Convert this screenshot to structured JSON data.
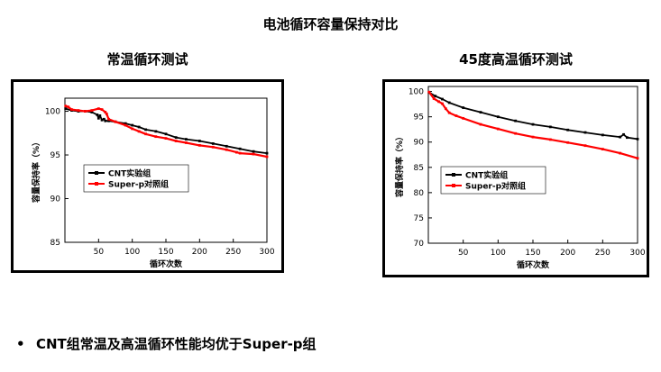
{
  "page": {
    "title": "电池循环容量保持对比",
    "bullet": "CNT组常温及高温循环性能均优于Super-p组"
  },
  "colors": {
    "cnt": "#000000",
    "superp": "#ff0000"
  },
  "chart_data": [
    {
      "type": "line",
      "title": "常温循环测试",
      "xlabel": "循环次数",
      "ylabel": "容量保持率（%）",
      "xlim": [
        0,
        300
      ],
      "ylim": [
        85,
        101.5
      ],
      "xticks": [
        50,
        100,
        150,
        200,
        250,
        300
      ],
      "yticks": [
        85,
        90,
        95,
        100
      ],
      "legend_position": "center-left",
      "grid": false,
      "series": [
        {
          "name": "CNT实验组",
          "color": "#000000",
          "x": [
            1,
            10,
            20,
            30,
            40,
            48,
            50,
            52,
            55,
            58,
            60,
            65,
            75,
            90,
            100,
            110,
            120,
            135,
            150,
            165,
            180,
            200,
            220,
            240,
            260,
            280,
            300
          ],
          "y": [
            100.3,
            100.1,
            100.0,
            100.0,
            99.9,
            99.6,
            99.2,
            99.5,
            99.0,
            99.1,
            98.9,
            98.9,
            98.8,
            98.6,
            98.4,
            98.2,
            97.9,
            97.7,
            97.4,
            97.0,
            96.8,
            96.6,
            96.3,
            96.0,
            95.7,
            95.4,
            95.2
          ]
        },
        {
          "name": "Super-p对照组",
          "color": "#ff0000",
          "x": [
            1,
            5,
            10,
            20,
            30,
            40,
            50,
            55,
            60,
            62,
            65,
            75,
            90,
            100,
            110,
            120,
            135,
            150,
            165,
            180,
            200,
            220,
            240,
            255,
            260,
            280,
            300
          ],
          "y": [
            100.6,
            100.5,
            100.2,
            100.1,
            100.0,
            100.1,
            100.3,
            100.2,
            99.9,
            99.7,
            99.1,
            98.8,
            98.4,
            98.0,
            97.7,
            97.4,
            97.1,
            96.9,
            96.6,
            96.4,
            96.1,
            95.9,
            95.6,
            95.3,
            95.2,
            95.1,
            94.8
          ]
        }
      ]
    },
    {
      "type": "line",
      "title": "45度高温循环测试",
      "xlabel": "循环次数",
      "ylabel": "容量保持率（%）",
      "xlim": [
        0,
        300
      ],
      "ylim": [
        70,
        101
      ],
      "xticks": [
        50,
        100,
        150,
        200,
        250,
        300
      ],
      "yticks": [
        70,
        75,
        80,
        85,
        90,
        95,
        100
      ],
      "legend_position": "center-left",
      "grid": false,
      "series": [
        {
          "name": "CNT实验组",
          "color": "#000000",
          "x": [
            1,
            10,
            20,
            30,
            50,
            75,
            100,
            125,
            150,
            175,
            200,
            225,
            250,
            275,
            280,
            285,
            300
          ],
          "y": [
            99.8,
            99.1,
            98.5,
            97.8,
            96.8,
            95.9,
            95.0,
            94.2,
            93.5,
            93.0,
            92.4,
            91.9,
            91.4,
            91.0,
            91.5,
            90.9,
            90.6
          ]
        },
        {
          "name": "Super-p对照组",
          "color": "#ff0000",
          "x": [
            1,
            8,
            15,
            20,
            25,
            30,
            40,
            50,
            75,
            100,
            125,
            150,
            175,
            200,
            225,
            250,
            275,
            300
          ],
          "y": [
            99.9,
            98.6,
            98.0,
            97.6,
            96.6,
            95.8,
            95.2,
            94.7,
            93.5,
            92.6,
            91.7,
            91.0,
            90.5,
            89.9,
            89.3,
            88.6,
            87.8,
            86.8
          ]
        }
      ]
    }
  ]
}
